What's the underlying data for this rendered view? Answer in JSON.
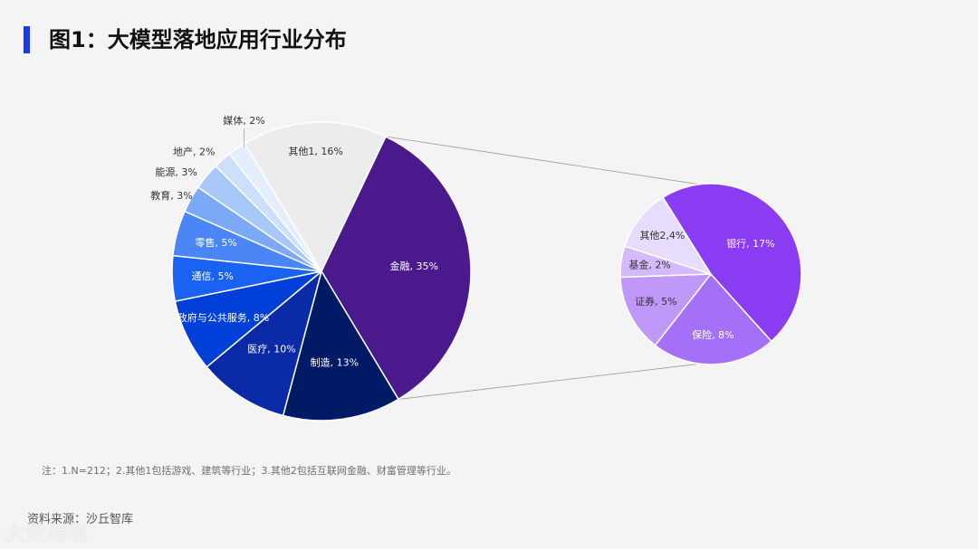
{
  "title": "图1：大模型落地应用行业分布",
  "note": "注：1.N=212；2.其他1包括游戏、建筑等行业；3.其他2包括互联网金融、财富管理等行业。",
  "source": "资料来源：沙丘智库",
  "watermark": "大数跨境",
  "chart_data": [
    {
      "type": "pie",
      "title": "",
      "slices": [
        {
          "label": "其他1, 16%",
          "name": "其他1",
          "value": 16,
          "color": "#ececec",
          "text_color": "#333333"
        },
        {
          "label": "金融, 35%",
          "name": "金融",
          "value": 35,
          "color": "#4a1a8c",
          "text_color": "#ffffff"
        },
        {
          "label": "制造, 13%",
          "name": "制造",
          "value": 13,
          "color": "#001a66",
          "text_color": "#ffffff"
        },
        {
          "label": "医疗, 10%",
          "name": "医疗",
          "value": 10,
          "color": "#0a2aa8",
          "text_color": "#ffffff"
        },
        {
          "label": "政府与公共服务, 8%",
          "name": "政府与公共服务",
          "value": 8,
          "color": "#0040d8",
          "text_color": "#ffffff"
        },
        {
          "label": "通信, 5%",
          "name": "通信",
          "value": 5,
          "color": "#1a62f2",
          "text_color": "#ffffff"
        },
        {
          "label": "零售, 5%",
          "name": "零售",
          "value": 5,
          "color": "#4a86f5",
          "text_color": "#ffffff"
        },
        {
          "label": "教育, 3%",
          "name": "教育",
          "value": 3,
          "color": "#7ba8f7",
          "text_color": "#333333"
        },
        {
          "label": "能源, 3%",
          "name": "能源",
          "value": 3,
          "color": "#a8c8fa",
          "text_color": "#333333"
        },
        {
          "label": "地产, 2%",
          "name": "地产",
          "value": 2,
          "color": "#ccdffc",
          "text_color": "#333333"
        },
        {
          "label": "媒体, 2%",
          "name": "媒体",
          "value": 2,
          "color": "#e4eefd",
          "text_color": "#333333"
        }
      ]
    },
    {
      "type": "pie",
      "title": "",
      "breakdown_of": "金融",
      "slices": [
        {
          "label": "保险, 8%",
          "name": "保险",
          "value": 8,
          "color": "#a470f8",
          "text_color": "#ffffff"
        },
        {
          "label": "证券, 5%",
          "name": "证券",
          "value": 5,
          "color": "#bf98fa",
          "text_color": "#333333"
        },
        {
          "label": "基金, 2%",
          "name": "基金",
          "value": 2,
          "color": "#d4bafb",
          "text_color": "#333333"
        },
        {
          "label": "其他2,4%",
          "name": "其他2",
          "value": 4,
          "color": "#e8dcfd",
          "text_color": "#333333"
        },
        {
          "label": "银行, 17%",
          "name": "银行",
          "value": 17,
          "color": "#8a3cf2",
          "text_color": "#ffffff"
        }
      ]
    }
  ]
}
